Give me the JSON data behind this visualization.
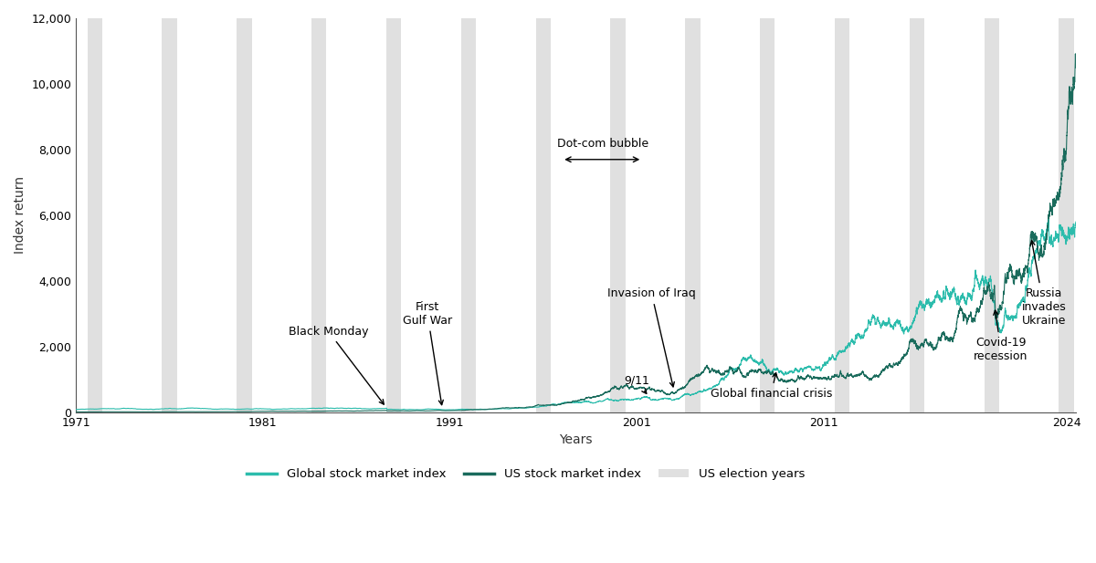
{
  "ylabel": "Index return",
  "xlabel": "Years",
  "xlim": [
    1971,
    2024.5
  ],
  "ylim": [
    0,
    12000
  ],
  "yticks": [
    0,
    2000,
    4000,
    6000,
    8000,
    10000,
    12000
  ],
  "xticks": [
    1971,
    1981,
    1991,
    2001,
    2011,
    2024
  ],
  "election_years": [
    1972,
    1976,
    1980,
    1984,
    1988,
    1992,
    1996,
    2000,
    2004,
    2008,
    2012,
    2016,
    2020,
    2024
  ],
  "global_color": "#2cbcac",
  "us_color": "#1a6b5c",
  "election_band_color": "#e0e0e0",
  "background_color": "#ffffff",
  "legend_labels": [
    "Global stock market index",
    "US stock market index",
    "US election years"
  ]
}
